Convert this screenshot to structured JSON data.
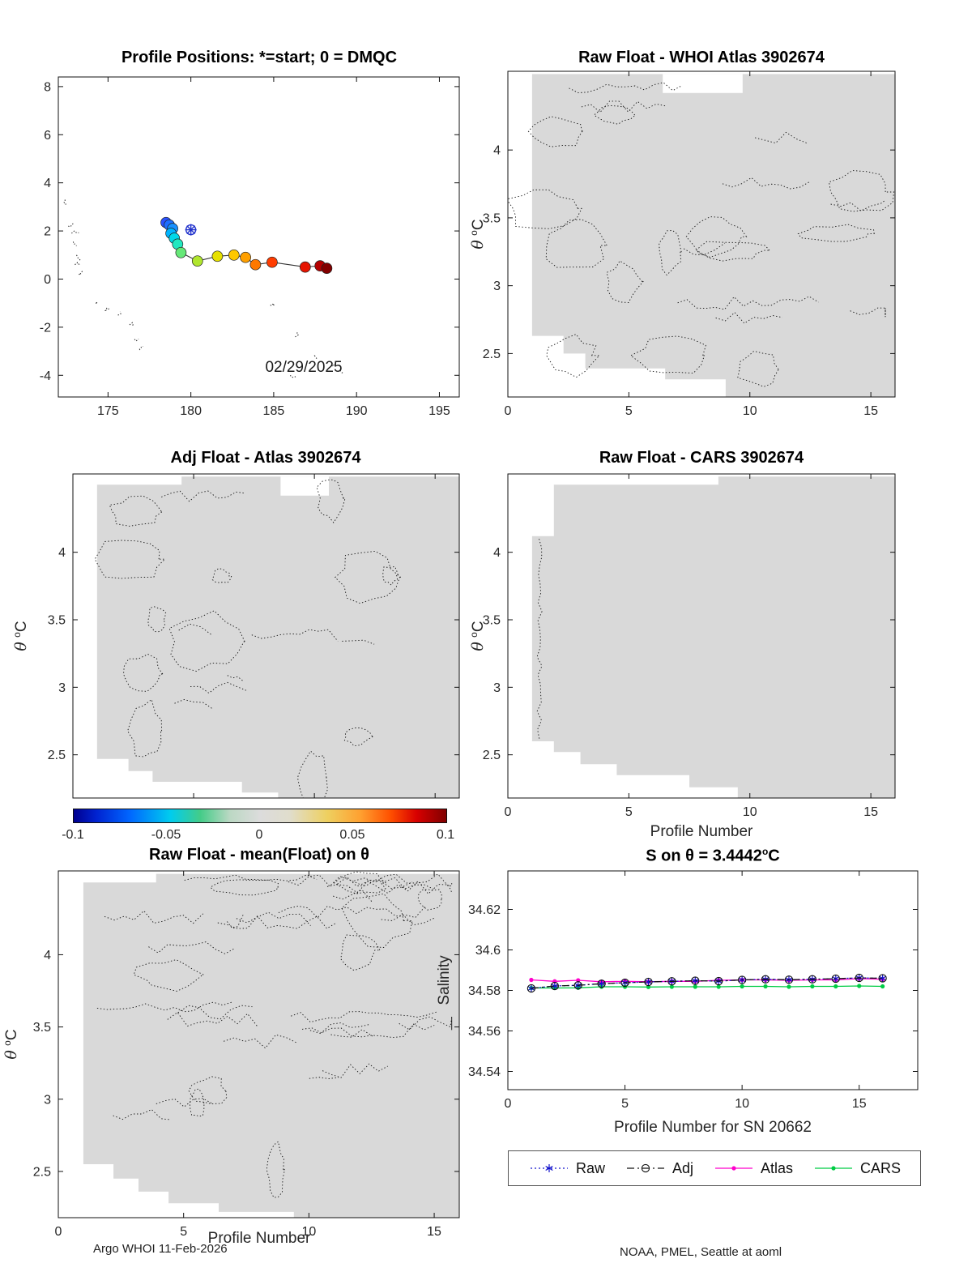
{
  "footer": {
    "left": "Argo WHOI 11-Feb-2026",
    "right": "NOAA, PMEL, Seattle at aoml"
  },
  "labels": {
    "theta": "θ",
    "deg_sup": "o",
    "deg_unit": "C"
  },
  "chart_data": [
    {
      "id": "positions",
      "type": "scatter",
      "title": "Profile Positions: *=start; 0 = DMQC",
      "date_label": "02/29/2025",
      "xlim": [
        172,
        196.2
      ],
      "ylim": [
        -4.9,
        8.4
      ],
      "xticks": [
        175,
        180,
        185,
        190,
        195
      ],
      "yticks": [
        -4,
        -2,
        0,
        2,
        4,
        6,
        8
      ],
      "trajectory": {
        "x": [
          178.5,
          178.7,
          178.9,
          178.8,
          179.0,
          179.2,
          179.4,
          180.4,
          181.6,
          182.6,
          183.3,
          183.9,
          184.9,
          186.9,
          187.8,
          188.2
        ],
        "y": [
          2.35,
          2.25,
          2.1,
          1.9,
          1.7,
          1.45,
          1.1,
          0.75,
          0.95,
          1.0,
          0.9,
          0.6,
          0.7,
          0.5,
          0.55,
          0.45
        ],
        "colors": [
          "#2a52ff",
          "#1e6eff",
          "#1890ff",
          "#00b4ff",
          "#00d8e8",
          "#22e8c0",
          "#66e878",
          "#b0e62e",
          "#e6e000",
          "#ffc800",
          "#ffa000",
          "#ff7800",
          "#ff3c00",
          "#e61400",
          "#b40000",
          "#820000"
        ]
      },
      "start_marker": {
        "x": 180.0,
        "y": 2.05,
        "color": "#2233cc",
        "symbol": "asterisk-circle"
      },
      "islands": [
        [
          172.4,
          3.3
        ],
        [
          172.6,
          2.2
        ],
        [
          172.8,
          1.9
        ],
        [
          172.9,
          1.55
        ],
        [
          173.1,
          1.0
        ],
        [
          173.0,
          0.6
        ],
        [
          173.3,
          0.2
        ],
        [
          174.3,
          -1.0
        ],
        [
          174.9,
          -1.3
        ],
        [
          175.6,
          -1.5
        ],
        [
          176.3,
          -1.9
        ],
        [
          176.6,
          -2.5
        ],
        [
          176.9,
          -2.9
        ],
        [
          184.8,
          -1.1
        ],
        [
          186.3,
          -2.4
        ],
        [
          187.6,
          -3.3
        ],
        [
          188.5,
          -3.6
        ],
        [
          189.0,
          -3.8
        ],
        [
          186.0,
          -4.0
        ]
      ]
    },
    {
      "id": "raw_atlas",
      "type": "contour",
      "title": "Raw Float - WHOI Atlas  3902674",
      "xlim": [
        0,
        16
      ],
      "ylim": [
        2.18,
        4.58
      ],
      "xticks": [
        0,
        5,
        10,
        15
      ],
      "yticks": [
        2.5,
        3,
        3.5,
        4
      ],
      "fill": "#d9d9d9",
      "region": [
        [
          1,
          4.56
        ],
        [
          16,
          4.56
        ],
        [
          16,
          2.18
        ],
        [
          9,
          2.18
        ],
        [
          9,
          2.31
        ],
        [
          6.5,
          2.31
        ],
        [
          6.5,
          2.39
        ],
        [
          3.2,
          2.39
        ],
        [
          3.2,
          2.5
        ],
        [
          2.3,
          2.5
        ],
        [
          2.3,
          2.63
        ],
        [
          1,
          2.63
        ]
      ],
      "notches": [
        [
          [
            6.4,
            4.56
          ],
          [
            9.7,
            4.56
          ],
          [
            9.7,
            4.42
          ],
          [
            6.4,
            4.42
          ]
        ]
      ],
      "squiggles": {
        "seed": 11,
        "loops": 13,
        "streaks": 9,
        "bounds": [
          1.3,
          15.6,
          2.35,
          4.5
        ]
      }
    },
    {
      "id": "adj_atlas",
      "type": "contour",
      "title": "Adj Float - Atlas  3902674",
      "xlim": [
        0,
        16
      ],
      "ylim": [
        2.18,
        4.58
      ],
      "xticks": [
        0,
        5,
        10,
        15
      ],
      "xtick_labels": false,
      "yticks": [
        2.5,
        3,
        3.5,
        4
      ],
      "fill": "#d9d9d9",
      "region": [
        [
          1,
          4.5
        ],
        [
          4.5,
          4.5
        ],
        [
          4.5,
          4.56
        ],
        [
          16,
          4.56
        ],
        [
          16,
          2.18
        ],
        [
          8.5,
          2.18
        ],
        [
          8.5,
          2.22
        ],
        [
          7,
          2.22
        ],
        [
          7,
          2.3
        ],
        [
          3.3,
          2.3
        ],
        [
          3.3,
          2.38
        ],
        [
          2.3,
          2.38
        ],
        [
          2.3,
          2.47
        ],
        [
          1,
          2.47
        ]
      ],
      "notches": [
        [
          [
            8.6,
            4.56
          ],
          [
            10.6,
            4.56
          ],
          [
            10.6,
            4.42
          ],
          [
            8.6,
            4.42
          ]
        ]
      ],
      "squiggles": {
        "seed": 23,
        "loops": 12,
        "streaks": 7,
        "bounds": [
          1.4,
          14.5,
          2.3,
          4.45
        ]
      },
      "colorbar": {
        "ticks": [
          "-0.1",
          "-0.05",
          "0",
          "0.05",
          "0.1"
        ],
        "stops": [
          [
            "#00008f",
            0
          ],
          [
            "#0022d0",
            6
          ],
          [
            "#0066ff",
            15
          ],
          [
            "#00ccee",
            26
          ],
          [
            "#44cc88",
            34
          ],
          [
            "#bcd8c4",
            42
          ],
          [
            "#dcdcdc",
            50
          ],
          [
            "#e0ddcc",
            58
          ],
          [
            "#eed060",
            68
          ],
          [
            "#ffa030",
            77
          ],
          [
            "#ff5000",
            85
          ],
          [
            "#d80000",
            92
          ],
          [
            "#800000",
            100
          ]
        ]
      }
    },
    {
      "id": "raw_cars",
      "type": "contour",
      "title": "Raw Float - CARS  3902674",
      "xlabel": "Profile Number",
      "xlim": [
        0,
        16
      ],
      "ylim": [
        2.18,
        4.58
      ],
      "xticks": [
        0,
        5,
        10,
        15
      ],
      "yticks": [
        2.5,
        3,
        3.5,
        4
      ],
      "fill": "#d9d9d9",
      "region": [
        [
          1,
          4.12
        ],
        [
          1.9,
          4.12
        ],
        [
          1.9,
          4.5
        ],
        [
          8.7,
          4.5
        ],
        [
          8.7,
          4.56
        ],
        [
          16,
          4.56
        ],
        [
          16,
          2.18
        ],
        [
          9.5,
          2.18
        ],
        [
          9.5,
          2.26
        ],
        [
          7.5,
          2.26
        ],
        [
          7.5,
          2.35
        ],
        [
          4.5,
          2.35
        ],
        [
          4.5,
          2.43
        ],
        [
          3,
          2.43
        ],
        [
          3,
          2.52
        ],
        [
          1.9,
          2.52
        ],
        [
          1.9,
          2.6
        ],
        [
          1,
          2.6
        ]
      ],
      "edge": {
        "x": 1.3,
        "y0": 2.62,
        "y1": 4.1
      },
      "squiggles": {
        "seed": 5,
        "loops": 0,
        "streaks": 0,
        "bounds": [
          1,
          2,
          2.6,
          4.1
        ]
      }
    },
    {
      "id": "raw_mean",
      "type": "contour",
      "title": "Raw Float - mean(Float) on θ",
      "xlabel": "Profile Number",
      "xlim": [
        0,
        16
      ],
      "ylim": [
        2.18,
        4.58
      ],
      "xticks": [
        0,
        5,
        10,
        15
      ],
      "yticks": [
        2.5,
        3,
        3.5,
        4
      ],
      "fill": "#d9d9d9",
      "region": [
        [
          1,
          4.5
        ],
        [
          3.9,
          4.5
        ],
        [
          3.9,
          4.56
        ],
        [
          16,
          4.56
        ],
        [
          16,
          2.18
        ],
        [
          9.4,
          2.18
        ],
        [
          9.4,
          2.22
        ],
        [
          6.4,
          2.22
        ],
        [
          6.4,
          2.28
        ],
        [
          4.4,
          2.28
        ],
        [
          4.4,
          2.36
        ],
        [
          3.2,
          2.36
        ],
        [
          3.2,
          2.45
        ],
        [
          2.2,
          2.45
        ],
        [
          2.2,
          2.55
        ],
        [
          1,
          2.55
        ]
      ],
      "squiggles": {
        "seed": 37,
        "loops": 9,
        "streaks": 26,
        "bounds": [
          1.2,
          15.7,
          2.5,
          4.52
        ],
        "topBias": true
      }
    },
    {
      "id": "salinity",
      "type": "line",
      "title_main": "S on θ = 3.4442",
      "title_sup": "o",
      "title_unit": "C",
      "ylabel": "Salinity",
      "xlabel": "Profile Number for SN 20662",
      "xlim": [
        0,
        17.5
      ],
      "ylim": [
        34.531,
        34.639
      ],
      "xticks": [
        0,
        5,
        10,
        15
      ],
      "yticks": [
        34.54,
        34.56,
        34.58,
        34.6,
        34.62
      ],
      "x": [
        1,
        2,
        3,
        4,
        5,
        6,
        7,
        8,
        9,
        10,
        11,
        12,
        13,
        14,
        15,
        16
      ],
      "series": [
        {
          "name": "Raw",
          "color": "#1111cc",
          "line": "dotted",
          "marker": "asterisk",
          "values": [
            34.581,
            34.5822,
            34.5825,
            34.5833,
            34.5838,
            34.5842,
            34.5845,
            34.5848,
            34.5846,
            34.5852,
            34.5855,
            34.5853,
            34.5855,
            34.5858,
            34.5862,
            34.586
          ]
        },
        {
          "name": "Adj",
          "color": "#111111",
          "line": "dashdot",
          "marker": "circle",
          "values": [
            34.581,
            34.5822,
            34.5825,
            34.5833,
            34.5838,
            34.5842,
            34.5845,
            34.5848,
            34.5846,
            34.5852,
            34.5855,
            34.5853,
            34.5855,
            34.5858,
            34.5862,
            34.586
          ]
        },
        {
          "name": "Atlas",
          "color": "#ff00cc",
          "line": "solid",
          "marker": "dot",
          "values": [
            34.5852,
            34.5845,
            34.585,
            34.5843,
            34.5845,
            34.5843,
            34.5845,
            34.5845,
            34.585,
            34.5852,
            34.5852,
            34.585,
            34.5852,
            34.5852,
            34.5858,
            34.5855
          ]
        },
        {
          "name": "CARS",
          "color": "#00cc44",
          "line": "solid",
          "marker": "dot",
          "values": [
            34.5812,
            34.5812,
            34.5813,
            34.5818,
            34.5818,
            34.5817,
            34.5818,
            34.5818,
            34.5818,
            34.582,
            34.582,
            34.5818,
            34.582,
            34.582,
            34.5822,
            34.582
          ]
        }
      ]
    }
  ]
}
